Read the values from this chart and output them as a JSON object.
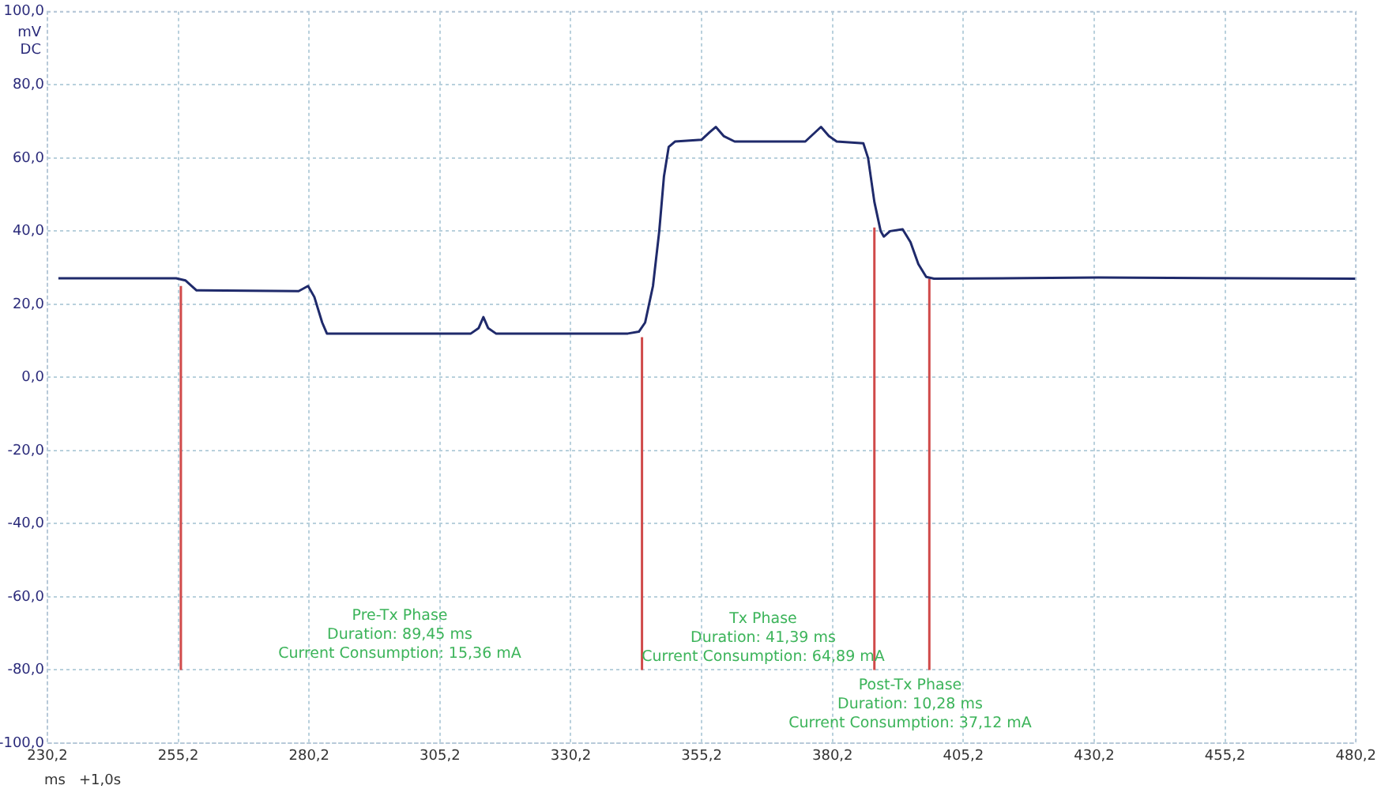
{
  "chart_data": {
    "type": "line",
    "xlabel": "ms",
    "ylabel": "mV\nDC",
    "annotations": [
      "+1,0s",
      "Pre-Tx Phase\nDuration: 89,45 ms\nCurrent Consumption: 15,36 mA",
      "Tx Phase\nDuration: 41,39 ms\nCurrent Consumption: 64,89 mA",
      "Post-Tx Phase\nDuration: 10,28 ms\nCurrent Consumption: 37,12 mA"
    ],
    "series": [
      {
        "color": "#1f2a6b",
        "x": [
          232.3,
          254.8,
          256.6,
          258.7,
          278.2,
          280.0,
          281.2,
          282.7,
          283.6,
          311.1,
          312.6,
          313.5,
          314.4,
          315.9,
          341.1,
          343.2,
          344.4,
          345.9,
          347.1,
          348.0,
          348.9,
          350.1,
          355.2,
          356.7,
          357.9,
          359.4,
          361.5,
          375.0,
          376.5,
          378.0,
          379.5,
          381.0,
          386.1,
          387.0,
          388.2,
          389.4,
          390.0,
          391.2,
          393.6,
          395.1,
          396.6,
          398.1,
          399.6,
          431.0,
          480.2
        ],
        "values": [
          27.1,
          27.1,
          26.5,
          23.8,
          23.6,
          25,
          22,
          15,
          12,
          12,
          13.5,
          16.5,
          13.5,
          12,
          12,
          12.5,
          15,
          25,
          40,
          55,
          63,
          64.5,
          65,
          67,
          68.5,
          66,
          64.5,
          64.5,
          66.5,
          68.5,
          66,
          64.5,
          64,
          60,
          48,
          40,
          38.5,
          40,
          40.5,
          37,
          31,
          27.5,
          27,
          27.3,
          27
        ]
      },
      {
        "color": "#d04a4a",
        "x": [
          255.7,
          255.7
        ],
        "values": [
          -80,
          25
        ]
      },
      {
        "color": "#d04a4a",
        "x": [
          343.8,
          343.8
        ],
        "values": [
          -80,
          11
        ]
      },
      {
        "color": "#d04a4a",
        "x": [
          388.2,
          388.2
        ],
        "values": [
          -80,
          41
        ]
      },
      {
        "color": "#d04a4a",
        "x": [
          398.7,
          398.7
        ],
        "values": [
          -80,
          27
        ]
      }
    ],
    "xlim": [
      230.2,
      480.2
    ],
    "xticks": [
      {
        "value": 230.2,
        "label": "230,2"
      },
      {
        "value": 255.2,
        "label": "255,2"
      },
      {
        "value": 280.2,
        "label": "280,2"
      },
      {
        "value": 305.2,
        "label": "305,2"
      },
      {
        "value": 330.2,
        "label": "330,2"
      },
      {
        "value": 355.2,
        "label": "355,2"
      },
      {
        "value": 380.2,
        "label": "380,2"
      },
      {
        "value": 405.2,
        "label": "405,2"
      },
      {
        "value": 430.2,
        "label": "430,2"
      },
      {
        "value": 455.2,
        "label": "455,2"
      },
      {
        "value": 480.2,
        "label": "480,2"
      }
    ],
    "ylim": [
      -100,
      100
    ],
    "yticks": [
      {
        "value": -100,
        "label": "-100,0"
      },
      {
        "value": -80,
        "label": "-80,0"
      },
      {
        "value": -60,
        "label": "-60,0"
      },
      {
        "value": -40,
        "label": "-40,0"
      },
      {
        "value": -20,
        "label": "-20,0"
      },
      {
        "value": 0,
        "label": "0,0"
      },
      {
        "value": 20,
        "label": "20,0"
      },
      {
        "value": 40,
        "label": "40,0"
      },
      {
        "value": 60,
        "label": "60,0"
      },
      {
        "value": 80,
        "label": "80,0"
      },
      {
        "value": 100,
        "label": "100,0"
      }
    ],
    "grid": true,
    "legend": false,
    "marker": "none",
    "line_style": "solid"
  }
}
